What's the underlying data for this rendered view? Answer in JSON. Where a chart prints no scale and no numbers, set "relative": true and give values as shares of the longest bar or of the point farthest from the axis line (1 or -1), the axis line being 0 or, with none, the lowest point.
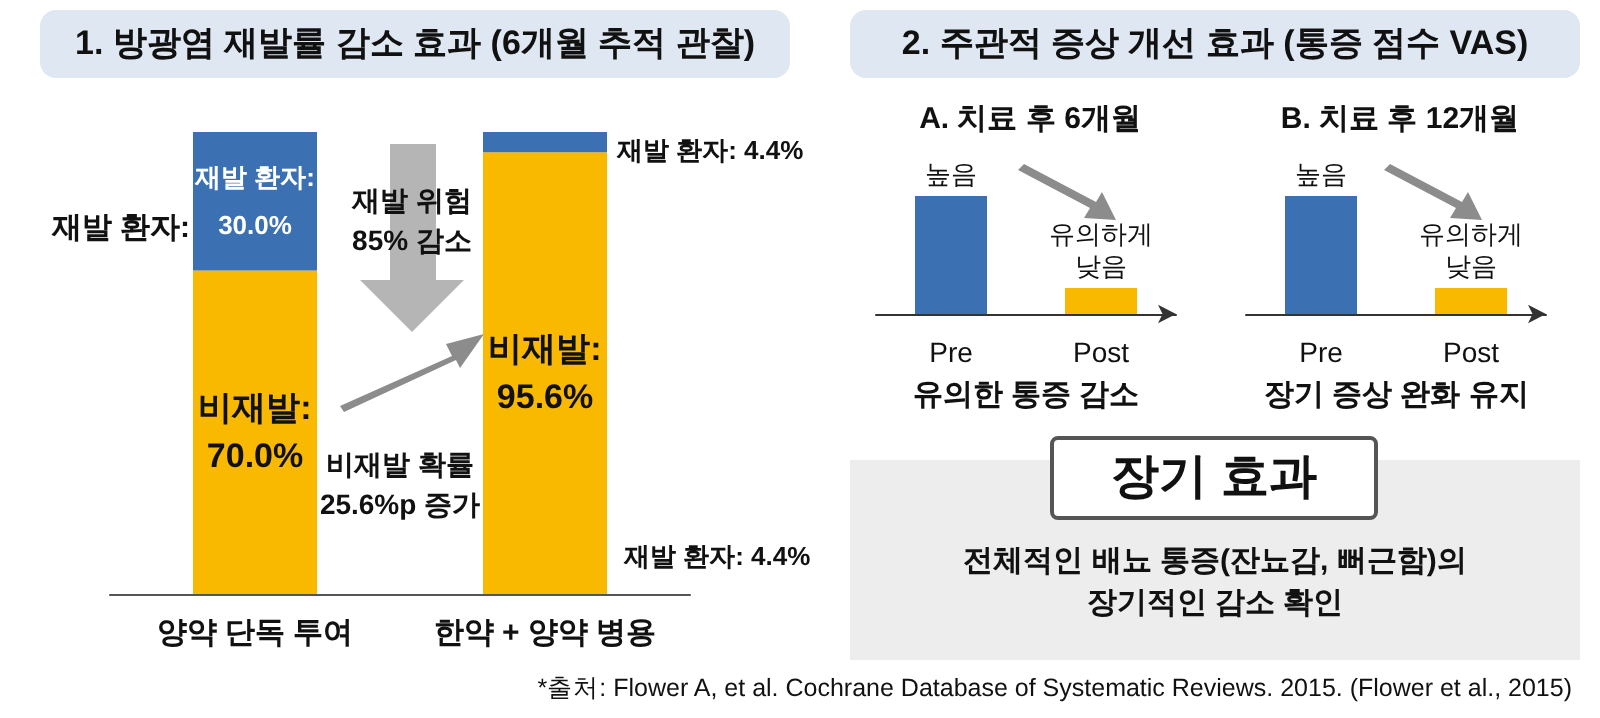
{
  "chart_data": [
    {
      "type": "bar",
      "title": "1. 방광염 재발률 감소 효과 (6개월 추적 관찰)",
      "categories": [
        "양약 단독 투여",
        "한약 + 양약 병용"
      ],
      "stacked": true,
      "grid": false,
      "tick_labels": "x",
      "series": [
        {
          "color": "#f9b900",
          "values": [
            70.0,
            95.6
          ],
          "value_labels": [
            "비재발:\n70.0%",
            "비재발:\n95.6%"
          ]
        },
        {
          "color": "#3b70b2",
          "values": [
            30.0,
            4.4
          ],
          "value_labels": [
            "재발 환자:\n30.0%",
            null
          ]
        }
      ],
      "annotations": [
        "재발 환자:",
        "재발 위험\n85% 감소",
        "비재발 확률\n25.6%p 증가",
        "재발 환자: 4.4%",
        {
          "text": "재발 환자: 4.4%",
          "x": "한약 + 양약 병용",
          "y": 100
        }
      ]
    },
    {
      "type": "bar",
      "title": "2. 주관적 증상 개선 효과 (통증 점수 VAS)",
      "subtitle": "A. 치료 후 6개월",
      "xlabel": "유의한 통증 감소",
      "relative": true,
      "categories": [
        "Pre",
        "Post"
      ],
      "values": [
        1,
        0.22
      ],
      "colors": [
        "#3b70b2",
        "#f9b900"
      ],
      "annotations": [
        {
          "text": "높음",
          "x": "Pre",
          "y": 1
        },
        {
          "text": "유의하게\n낮음",
          "x": "Post",
          "y": 0.22
        }
      ]
    },
    {
      "type": "bar",
      "subtitle": "B. 치료 후 12개월",
      "xlabel": "장기 증상 완화 유지",
      "relative": true,
      "categories": [
        "Pre",
        "Post"
      ],
      "values": [
        1,
        0.22
      ],
      "colors": [
        "#3b70b2",
        "#f9b900"
      ],
      "annotations": [
        {
          "text": "높음",
          "x": "Pre",
          "y": 1
        },
        {
          "text": "유의하게\n낮음",
          "x": "Post",
          "y": 0.22
        }
      ]
    },
    {
      "type": "other",
      "title": "장기 효과",
      "annotations": [
        "전체적인 배뇨 통증(잔뇨감, 뻐근함)의\n장기적인 감소 확인",
        "*출처: Flower A, et al. Cochrane Database of Systematic Reviews. 2015. (Flower et al., 2015)"
      ]
    }
  ]
}
